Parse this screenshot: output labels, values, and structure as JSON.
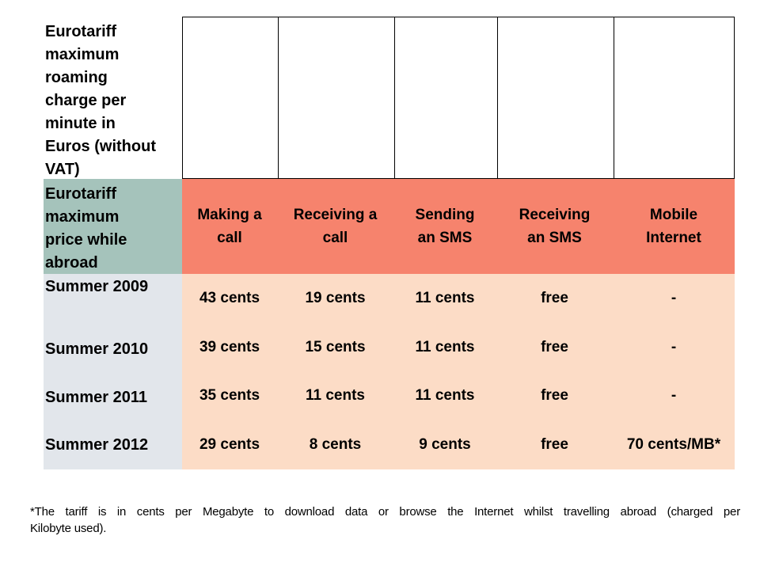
{
  "chart_data": {
    "type": "table",
    "title": "Eurotariff maximum roaming charge per minute in Euros (without VAT)",
    "row_header": "Eurotariff maximum price while abroad",
    "columns": [
      "Making a call",
      "Receiving a call",
      "Sending an SMS",
      "Receiving an SMS",
      "Mobile Internet"
    ],
    "rows": [
      {
        "label": "Summer 2009",
        "values": [
          "43 cents",
          "19 cents",
          "11 cents",
          "free",
          "-"
        ]
      },
      {
        "label": "Summer 2010",
        "values": [
          "39 cents",
          "15 cents",
          "11 cents",
          "free",
          "-"
        ]
      },
      {
        "label": "Summer 2011",
        "values": [
          "35 cents",
          "11 cents",
          "11 cents",
          "free",
          "-"
        ]
      },
      {
        "label": "Summer 2012",
        "values": [
          "29 cents",
          "8 cents",
          "9 cents",
          "free",
          "70 cents/MB*"
        ]
      }
    ],
    "footnote": "*The tariff is in cents per Megabyte to download data or browse the Internet whilst travelling abroad (charged per Kilobyte used)."
  },
  "display": {
    "top_note": "Eurotariff\nmaximum\nroaming\ncharge per\nminute in\nEuros (without\nVAT)",
    "header_label": "Eurotariff\nmaximum\nprice while\nabroad",
    "col_headers": [
      "Making a\ncall",
      "Receiving a\ncall",
      "Sending\nan SMS",
      "Receiving\nan SMS",
      "Mobile\nInternet"
    ],
    "footnote_lines": [
      "*The tariff is in cents per Megabyte to download data or browse the Internet whilst travelling abroad (charged per",
      "Kilobyte used)."
    ]
  },
  "colors": {
    "header_fill": "#F6836D",
    "row_header_fill": "#A5C3BB",
    "label_column_fill": "#E2E6EB",
    "data_fill": "#FCDCC6",
    "border": "#000000",
    "background": "#FFFFFF",
    "text": "#000000"
  }
}
